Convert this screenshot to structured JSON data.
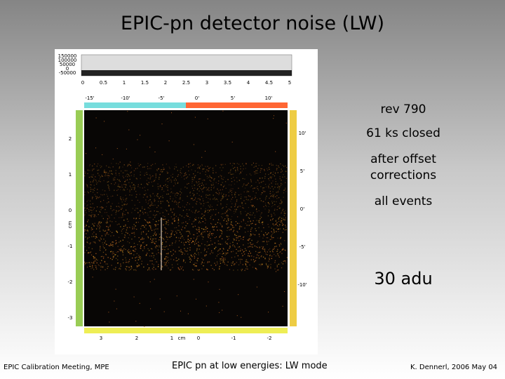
{
  "slide": {
    "title": "EPIC-pn detector noise  (LW)",
    "notes": [
      "rev 790",
      "61 ks closed",
      "after offset corrections",
      "all events"
    ],
    "highlight": "30 adu",
    "image": {
      "colorbar_legend": [
        "150000",
        "100000",
        "50000",
        "0",
        "-50000"
      ],
      "colorbar_ticks": [
        "0",
        "0.5",
        "1",
        "1.5",
        "2",
        "2.5",
        "3",
        "3.5",
        "4",
        "4.5",
        "5"
      ],
      "top_ticks": [
        "-15'",
        "-10'",
        "-5'",
        "0'",
        "5'",
        "10'"
      ],
      "left_ticks": [
        "2",
        "1",
        "0",
        "-1",
        "-2",
        "-3"
      ],
      "left_unit": "cm",
      "right_ticks": [
        "10'",
        "5'",
        "0'",
        "-5'",
        "-10'"
      ],
      "bottom_ticks": [
        "3",
        "2",
        "1",
        "cm",
        "0",
        "-1",
        "-2"
      ]
    },
    "footer": {
      "left": "EPIC Calibration Meeting, MPE",
      "center": "EPIC pn at low energies: LW mode",
      "right": "K. Dennerl, 2006 May 04"
    }
  }
}
